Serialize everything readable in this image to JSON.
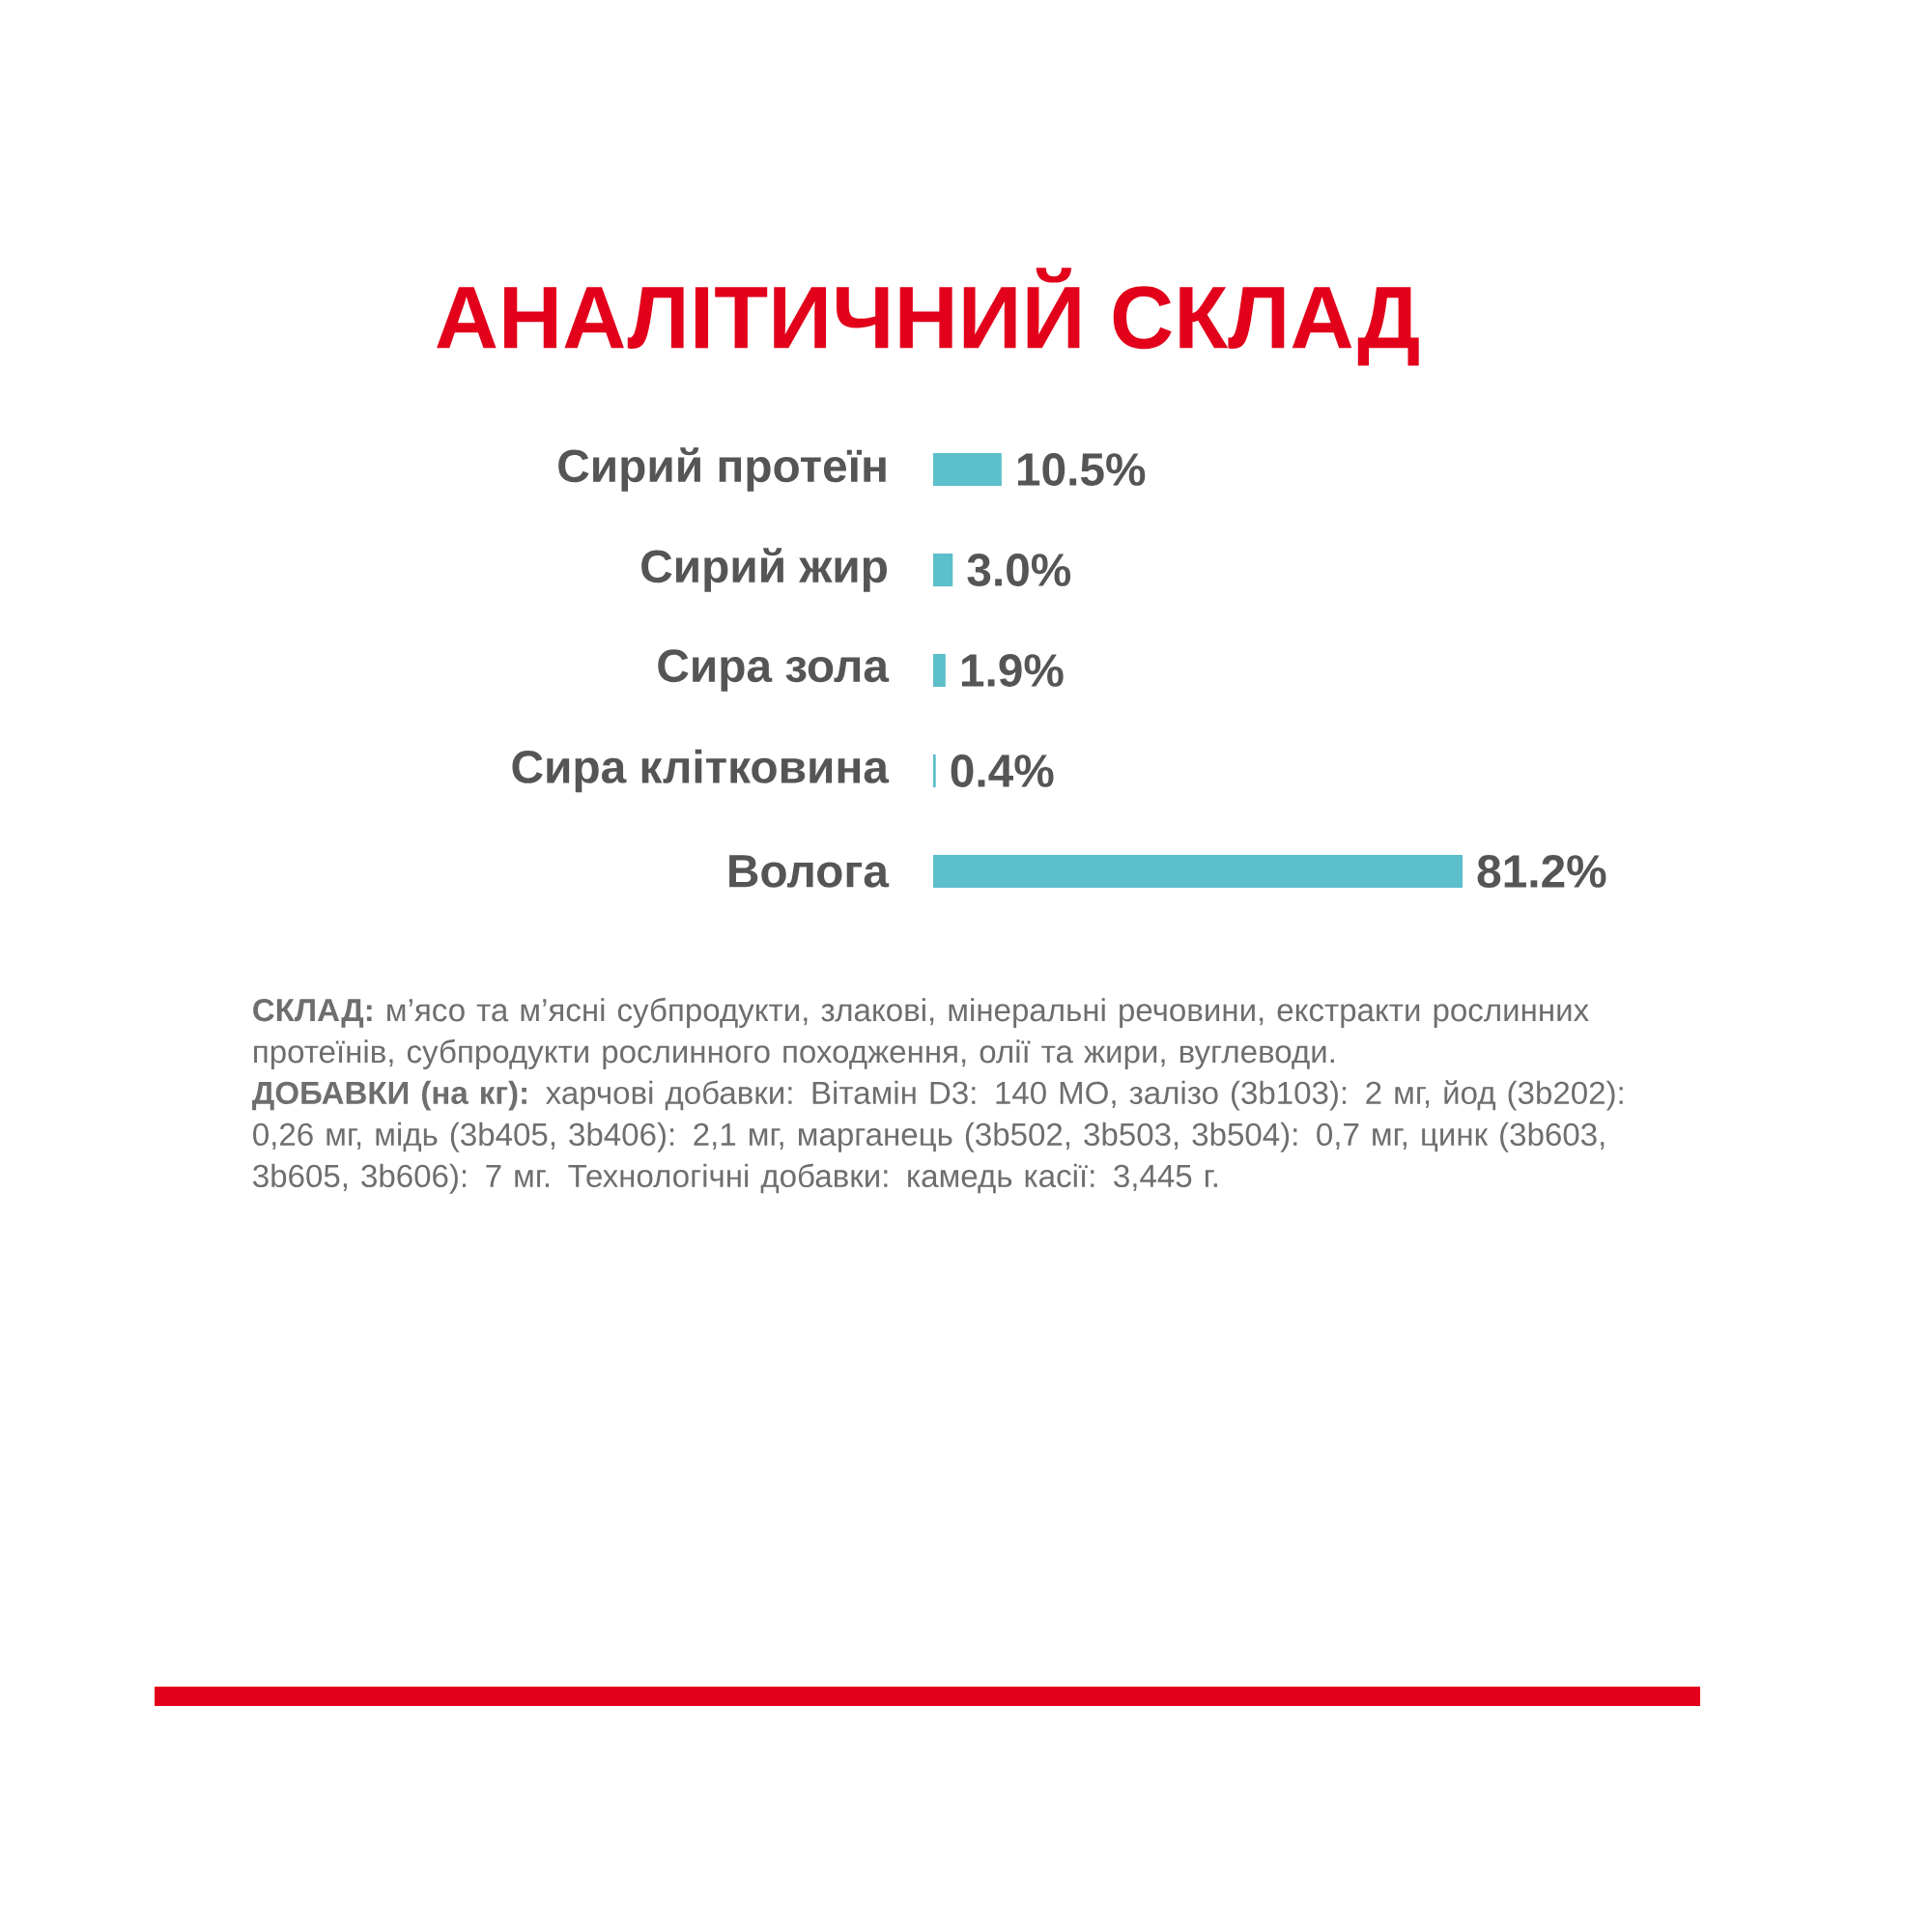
{
  "chart_data": {
    "type": "bar",
    "orientation": "horizontal",
    "title": "АНАЛІТИЧНИЙ СКЛАД",
    "categories": [
      "Сирий протеїн",
      "Сирий жир",
      "Сира зола",
      "Сира клітковина",
      "Волога"
    ],
    "values": [
      10.5,
      3.0,
      1.9,
      0.4,
      81.2
    ],
    "value_labels": [
      "10.5%",
      "3.0%",
      "1.9%",
      "0.4%",
      "81.2%"
    ],
    "color": "#5cbfca",
    "annotations": [
      "**СКЛАД:** м’ясо та м’ясні субпродукти, злакові, мінеральні речовини, екстракти рослинних протеїнів, субпродукти рослинного походження, олії та жири, вуглеводи.",
      "**ДОБАВКИ (на кг):** харчові добавки: Вітамін D3: 140 МО, залізо (3b103): 2 мг, йод (3b202): 0,26 мг, мідь (3b405, 3b406): 2,1 мг, марганець (3b502, 3b503, 3b504): 0,7 мг, цинк (3b603, 3b605, 3b606): 7 мг. Технологічні добавки: камедь касії: 3,445 г."
    ]
  }
}
